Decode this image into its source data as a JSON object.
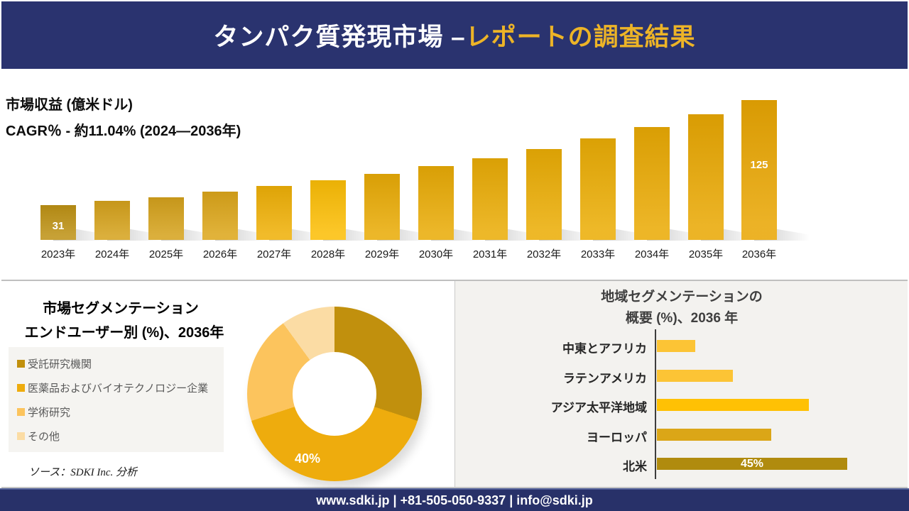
{
  "header": {
    "title_white": "タンパク質発現市場 –",
    "title_gold": "レポートの調査結果"
  },
  "source_note": "ソース：SDKI Inc. 分析",
  "footer": {
    "text": "www.sdki.jp | +81-505-050-9337 | info@sdki.jp"
  },
  "palette": {
    "navy_header": "#2A336F",
    "navy_footer": "#283169",
    "title_accent_gold": "#EDB427",
    "panel_gray": "#F3F2EF",
    "legend_box_gray": "#F5F4F1"
  },
  "chart_data": [
    {
      "id": "revenue-by-year",
      "type": "bar",
      "title": "市場収益 (億米ドル)",
      "subtitle": "CAGR％ - 約11.04% (2024―2036年)",
      "categories": [
        "2023年",
        "2024年",
        "2025年",
        "2026年",
        "2027年",
        "2028年",
        "2029年",
        "2030年",
        "2031年",
        "2032年",
        "2033年",
        "2034年",
        "2035年",
        "2036年"
      ],
      "values": [
        31,
        35,
        38,
        43,
        48,
        53,
        59,
        66,
        73,
        81,
        91,
        101,
        112,
        125
      ],
      "value_labels": [
        "31",
        "",
        "",
        "",
        "",
        "",
        "",
        "",
        "",
        "",
        "",
        "",
        "",
        "125"
      ],
      "ylim": [
        0,
        125
      ],
      "grid": false,
      "value_axis_shown": false,
      "bar_colors": [
        "#BE9215",
        "#D5A21C",
        "#D5A21C",
        "#DCA61A",
        "#EFB007",
        "#FCBE06",
        "#E9AB06",
        "#E9AB06",
        "#EAAC06",
        "#EBAD05",
        "#EBAD05",
        "#EAAA04",
        "#E9A803",
        "#E9A603"
      ]
    },
    {
      "id": "end-user-share-2036",
      "type": "pie",
      "donut": true,
      "title": "市場セグメンテーション",
      "subtitle": "エンドユーザー別 (%)、2036年",
      "legend_position": "left",
      "segments": [
        {
          "label": "受託研究機関",
          "value": 30,
          "color": "#C1900D",
          "shown_label": ""
        },
        {
          "label": "医薬品およびバイオテクノロジー企業",
          "value": 40,
          "color": "#EEAC0D",
          "shown_label": "40%"
        },
        {
          "label": "学術研究",
          "value": 20,
          "color": "#FCC45D",
          "shown_label": ""
        },
        {
          "label": "その他",
          "value": 10,
          "color": "#FBDCA4",
          "shown_label": ""
        }
      ]
    },
    {
      "id": "region-share-2036",
      "type": "bar",
      "orientation": "horizontal",
      "title_line1": "地域セグメンテーションの",
      "title_line2": "概要 (%)、2036 年",
      "categories": [
        "中東とアフリカ",
        "ラテンアメリカ",
        "アジア太平洋地域",
        "ヨーロッパ",
        "北米"
      ],
      "values": [
        9,
        18,
        36,
        27,
        45
      ],
      "value_labels": [
        "",
        "",
        "",
        "",
        "45%"
      ],
      "xlim": [
        0,
        50
      ],
      "grid": false,
      "bar_colors": [
        "#FCC435",
        "#FCC435",
        "#FFC104",
        "#DBA617",
        "#B08B0E"
      ]
    }
  ]
}
